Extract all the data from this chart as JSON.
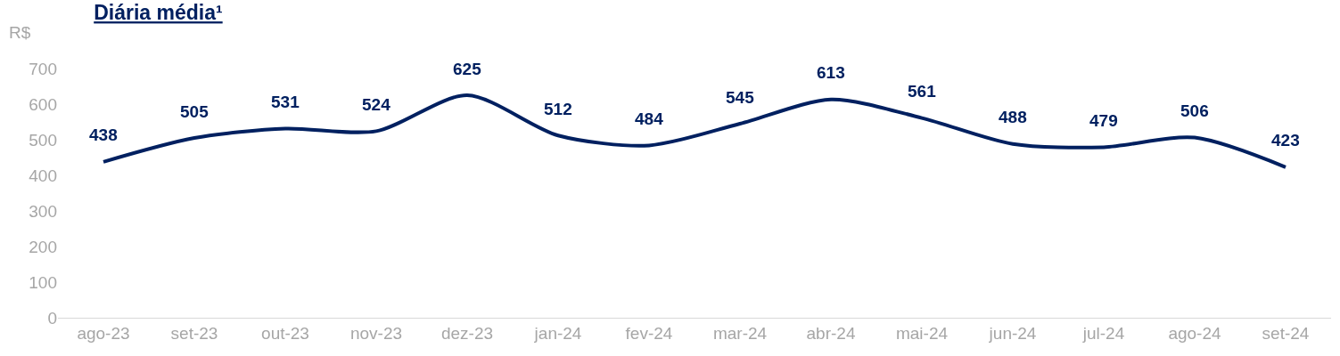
{
  "chart_data": {
    "type": "line",
    "title": "Diária média¹",
    "ylabel": "R$",
    "categories": [
      "ago-23",
      "set-23",
      "out-23",
      "nov-23",
      "dez-23",
      "jan-24",
      "fev-24",
      "mar-24",
      "abr-24",
      "mai-24",
      "jun-24",
      "jul-24",
      "ago-24",
      "set-24"
    ],
    "series": [
      {
        "color": "#002060",
        "values": [
          438,
          505,
          531,
          524,
          625,
          512,
          484,
          545,
          613,
          561,
          488,
          479,
          506,
          423
        ]
      }
    ],
    "ylim": [
      0,
      700
    ],
    "yticks": [
      0,
      100,
      200,
      300,
      400,
      500,
      600,
      700
    ],
    "data_labels": true,
    "grid": false,
    "marker": "none",
    "line_style": "solid"
  }
}
